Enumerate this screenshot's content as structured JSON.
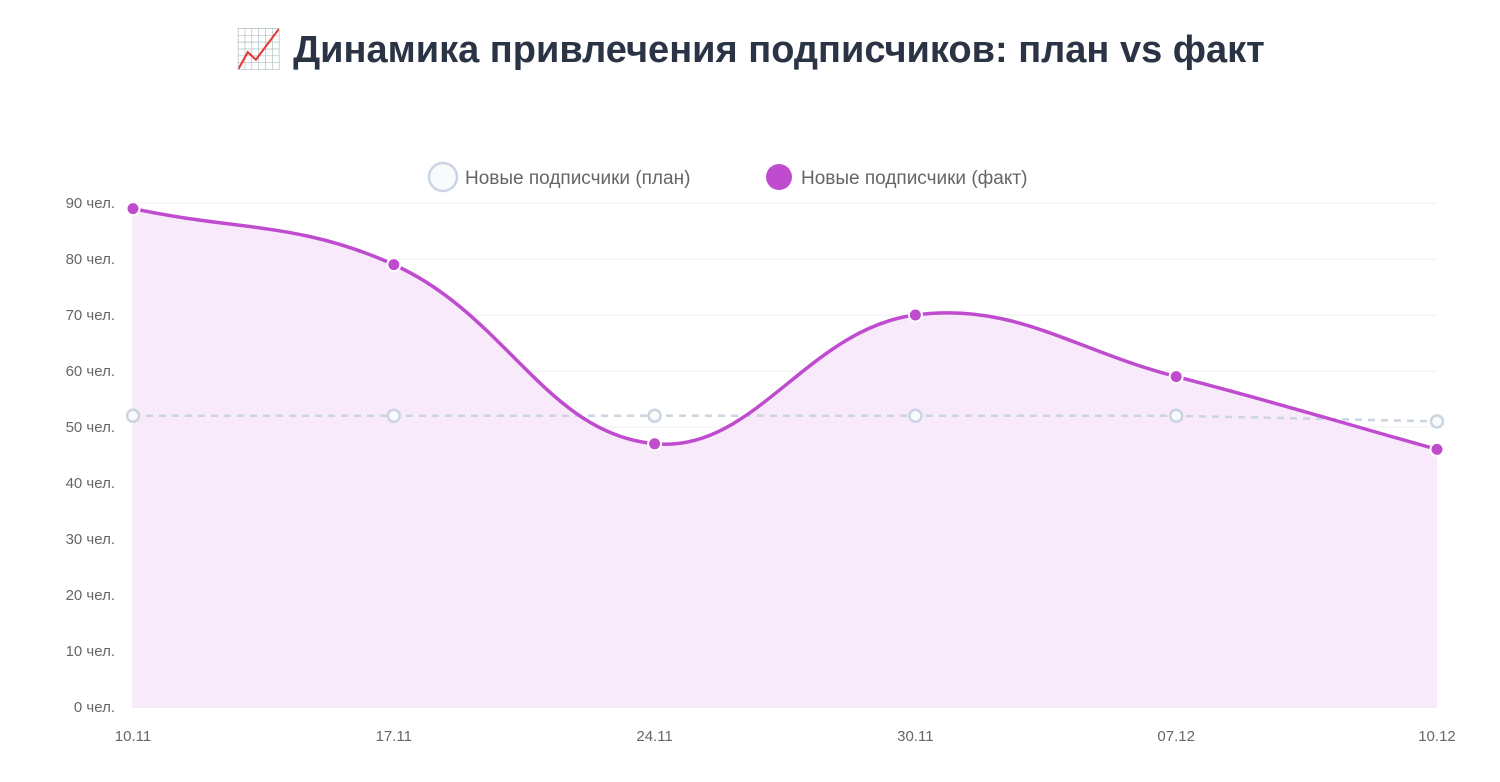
{
  "title": "📈 Динамика привлечения подписчиков: план vs факт",
  "chart_data": {
    "type": "line",
    "title": "📈 Динамика привлечения подписчиков: план vs факт",
    "categories": [
      "10.11",
      "17.11",
      "24.11",
      "30.11",
      "07.12",
      "10.12"
    ],
    "ylim": [
      0,
      90
    ],
    "yticks": [
      "0 чел.",
      "10 чел.",
      "20 чел.",
      "30 чел.",
      "40 чел.",
      "50 чел.",
      "60 чел.",
      "70 чел.",
      "80 чел.",
      "90 чел."
    ],
    "grid": true,
    "legend_position": "top",
    "series": [
      {
        "name": "Новые подписчики (план)",
        "values": [
          52,
          52,
          52,
          52,
          52,
          51
        ],
        "color": "#cbd5e1",
        "dashed": true,
        "fill": false
      },
      {
        "name": "Новые подписчики (факт)",
        "values": [
          89,
          79,
          47,
          70,
          59,
          46
        ],
        "color": "#bf4bcf",
        "dashed": false,
        "fill": true,
        "fill_color": "#f8eafa"
      }
    ]
  }
}
